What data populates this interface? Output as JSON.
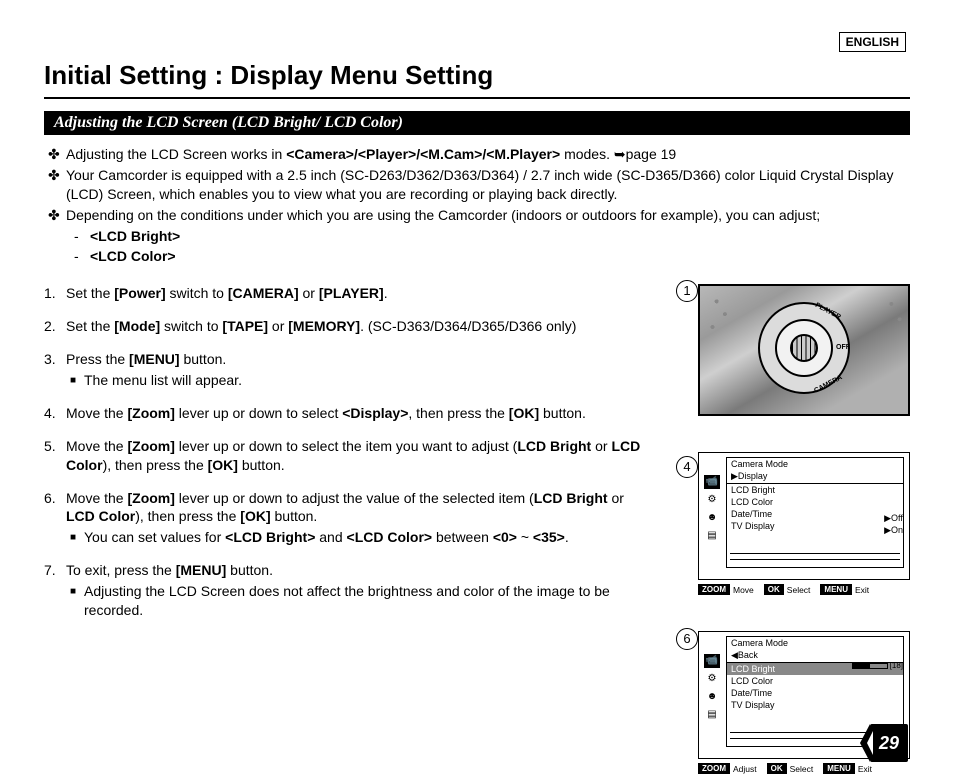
{
  "lang_badge": "ENGLISH",
  "page_title": "Initial Setting : Display Menu Setting",
  "section_bar": "Adjusting the LCD Screen (LCD Bright/ LCD Color)",
  "intro": {
    "line1_pre": "Adjusting the LCD Screen works in ",
    "line1_modes": "<Camera>/<Player>/<M.Cam>/<M.Player>",
    "line1_post": " modes. ➥page 19",
    "line2": "Your Camcorder is equipped with a 2.5 inch (SC-D263/D362/D363/D364) / 2.7 inch wide (SC-D365/D366) color Liquid Crystal Display (LCD) Screen, which enables you to view what you are recording or playing back directly.",
    "line3": "Depending on the conditions under which you are using the Camcorder (indoors or outdoors for example), you can adjust;",
    "sub1": "<LCD Bright>",
    "sub2": "<LCD Color>"
  },
  "steps": {
    "s1": {
      "n": "1.",
      "t_pre": "Set the ",
      "b1": "[Power]",
      "t_mid": " switch to ",
      "b2": "[CAMERA]",
      "t_or": " or ",
      "b3": "[PLAYER]",
      "t_end": "."
    },
    "s2": {
      "n": "2.",
      "t_pre": "Set the ",
      "b1": "[Mode]",
      "t_mid": " switch to ",
      "b2": "[TAPE]",
      "t_or": " or ",
      "b3": "[MEMORY]",
      "t_end": ". (SC-D363/D364/D365/D366 only)"
    },
    "s3": {
      "n": "3.",
      "t_pre": "Press the ",
      "b1": "[MENU]",
      "t_end": " button.",
      "sub": "The menu list will appear."
    },
    "s4": {
      "n": "4.",
      "t_pre": "Move the ",
      "b1": "[Zoom]",
      "t_mid": " lever up or down to select ",
      "b2": "<Display>",
      "t_mid2": ", then press the ",
      "b3": "[OK]",
      "t_end": " button."
    },
    "s5": {
      "n": "5.",
      "t_pre": "Move the ",
      "b1": "[Zoom]",
      "t_mid": " lever up or down to select the item you want to adjust (",
      "b2": "LCD Bright",
      "t_or": " or ",
      "b3": "LCD Color",
      "t_mid2": "), then press the ",
      "b4": "[OK]",
      "t_end": " button."
    },
    "s6": {
      "n": "6.",
      "t_pre": "Move the ",
      "b1": "[Zoom]",
      "t_mid": " lever up or down to adjust the value of the selected item (",
      "b2": "LCD Bright",
      "t_or": " or ",
      "b3": "LCD Color",
      "t_mid2": "), then press the ",
      "b4": "[OK]",
      "t_end": " button.",
      "sub_pre": "You can set values for ",
      "sub_b1": "<LCD Bright>",
      "sub_and": " and ",
      "sub_b2": "<LCD Color>",
      "sub_mid": " between ",
      "sub_b3": "<0>",
      "sub_tilde": " ~ ",
      "sub_b4": "<35>",
      "sub_end": "."
    },
    "s7": {
      "n": "7.",
      "t_pre": "To exit, press the ",
      "b1": "[MENU]",
      "t_end": " button.",
      "sub": "Adjusting the LCD Screen does not affect the brightness and color of the image to be recorded."
    }
  },
  "fig_nums": {
    "one": "1",
    "four": "4",
    "six": "6"
  },
  "dial": {
    "lbl_player": "PLAYER",
    "lbl_off": "OFF",
    "lbl_camera": "CAMERA"
  },
  "menu4": {
    "title": "Camera Mode",
    "subtitle": "▶Display",
    "items": [
      "LCD Bright",
      "LCD Color",
      "Date/Time",
      "TV Display"
    ],
    "opt_off": "▶Off",
    "opt_on": "▶On",
    "foot": {
      "zoom": "ZOOM",
      "move": "Move",
      "ok": "OK",
      "select": "Select",
      "menu": "MENU",
      "exit": "Exit"
    }
  },
  "menu6": {
    "title": "Camera Mode",
    "back": "◀Back",
    "items": [
      "LCD Bright",
      "LCD Color",
      "Date/Time",
      "TV Display"
    ],
    "value": "[18]",
    "bar_fill_pct": 51,
    "foot": {
      "zoom": "ZOOM",
      "adjust": "Adjust",
      "ok": "OK",
      "select": "Select",
      "menu": "MENU",
      "exit": "Exit"
    }
  },
  "page_number": "29",
  "colors": {
    "black": "#000000",
    "white": "#ffffff",
    "highlight": "#888888"
  }
}
